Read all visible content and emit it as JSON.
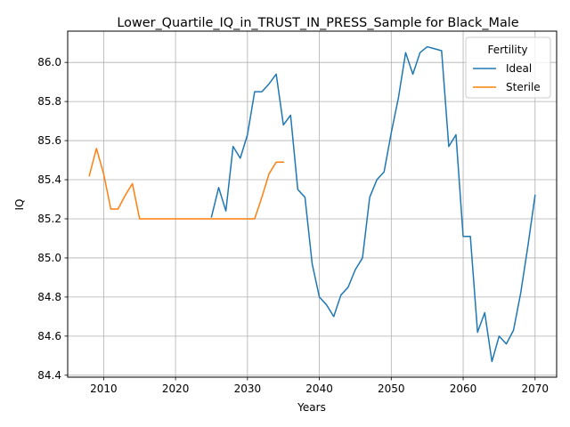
{
  "chart_data": {
    "type": "line",
    "title": "Lower_Quartile_IQ_in_TRUST_IN_PRESS_Sample for Black_Male",
    "xlabel": "Years",
    "ylabel": "IQ",
    "xlim": [
      2005,
      2073
    ],
    "ylim": [
      84.39,
      86.16
    ],
    "xticks": [
      2010,
      2020,
      2030,
      2040,
      2050,
      2060,
      2070
    ],
    "yticks": [
      84.4,
      84.6,
      84.8,
      85.0,
      85.2,
      85.4,
      85.6,
      85.8,
      86.0
    ],
    "ytick_labels": [
      "84.4",
      "84.6",
      "84.8",
      "85.0",
      "85.2",
      "85.4",
      "85.6",
      "85.8",
      "86.0"
    ],
    "grid": true,
    "legend": {
      "title": "Fertility",
      "position": "top-right"
    },
    "series": [
      {
        "name": "Ideal",
        "color": "#1f77b4",
        "x": [
          2025,
          2026,
          2027,
          2028,
          2029,
          2030,
          2031,
          2032,
          2033,
          2034,
          2035,
          2036,
          2037,
          2038,
          2039,
          2040,
          2041,
          2042,
          2043,
          2044,
          2045,
          2046,
          2047,
          2048,
          2049,
          2050,
          2051,
          2052,
          2053,
          2054,
          2055,
          2056,
          2057,
          2058,
          2059,
          2060,
          2061,
          2062,
          2063,
          2064,
          2065,
          2066,
          2067,
          2068,
          2069,
          2070
        ],
        "values": [
          85.21,
          85.36,
          85.24,
          85.57,
          85.51,
          85.63,
          85.85,
          85.85,
          85.89,
          85.94,
          85.68,
          85.73,
          85.35,
          85.31,
          84.97,
          84.8,
          84.76,
          84.7,
          84.81,
          84.85,
          84.94,
          85.0,
          85.31,
          85.4,
          85.44,
          85.64,
          85.82,
          86.05,
          85.94,
          86.05,
          86.08,
          86.07,
          86.06,
          85.57,
          85.63,
          85.11,
          85.11,
          84.62,
          84.72,
          84.47,
          84.6,
          84.56,
          84.63,
          84.82,
          85.06,
          85.32
        ]
      },
      {
        "name": "Sterile",
        "color": "#ff7f0e",
        "x": [
          2008,
          2009,
          2010,
          2011,
          2012,
          2013,
          2014,
          2015,
          2016,
          2017,
          2018,
          2019,
          2020,
          2021,
          2022,
          2023,
          2024,
          2025,
          2026,
          2027,
          2028,
          2029,
          2030,
          2031,
          2032,
          2033,
          2034,
          2035
        ],
        "values": [
          85.42,
          85.56,
          85.43,
          85.25,
          85.25,
          85.32,
          85.38,
          85.2,
          85.2,
          85.2,
          85.2,
          85.2,
          85.2,
          85.2,
          85.2,
          85.2,
          85.2,
          85.2,
          85.2,
          85.2,
          85.2,
          85.2,
          85.2,
          85.2,
          85.31,
          85.43,
          85.49,
          85.49
        ]
      }
    ]
  }
}
